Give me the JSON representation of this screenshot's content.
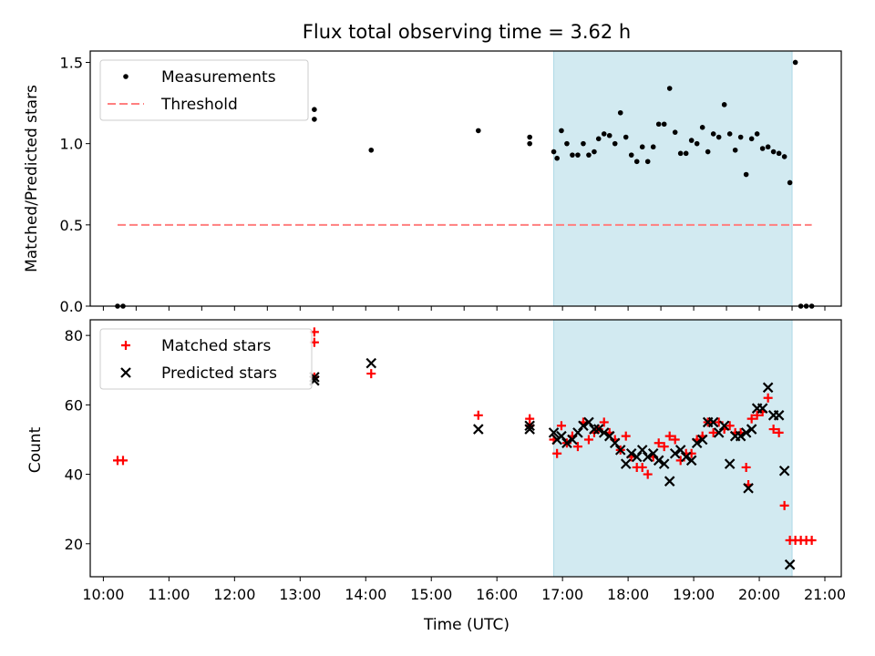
{
  "chart_data": [
    {
      "type": "scatter",
      "title": "Flux total observing time = 3.62 h",
      "xlabel": "",
      "ylabel": "Matched/Predicted stars",
      "xlim": [
        "09:48",
        "21:15"
      ],
      "ylim": [
        0,
        1.57
      ],
      "yticks": [
        0.0,
        0.5,
        1.0,
        1.5
      ],
      "ytick_labels": [
        "0.0",
        "0.5",
        "1.0",
        "1.5"
      ],
      "legend_position": "top-left",
      "shaded_span": {
        "from": "16:52",
        "to": "20:30",
        "color": "#add8e6"
      },
      "series": [
        {
          "name": "Measurements",
          "marker": "dot",
          "color": "#000000",
          "points": [
            [
              "10:13",
              0.0
            ],
            [
              "10:18",
              0.0
            ],
            [
              "13:13",
              1.21
            ],
            [
              "13:13",
              1.15
            ],
            [
              "14:05",
              0.96
            ],
            [
              "15:43",
              1.08
            ],
            [
              "16:30",
              1.04
            ],
            [
              "16:30",
              1.0
            ],
            [
              "16:52",
              0.95
            ],
            [
              "16:55",
              0.91
            ],
            [
              "16:59",
              1.08
            ],
            [
              "17:04",
              1.0
            ],
            [
              "17:09",
              0.93
            ],
            [
              "17:14",
              0.93
            ],
            [
              "17:19",
              1.0
            ],
            [
              "17:24",
              0.93
            ],
            [
              "17:29",
              0.95
            ],
            [
              "17:33",
              1.03
            ],
            [
              "17:38",
              1.06
            ],
            [
              "17:43",
              1.05
            ],
            [
              "17:48",
              1.0
            ],
            [
              "17:53",
              1.19
            ],
            [
              "17:58",
              1.04
            ],
            [
              "18:03",
              0.93
            ],
            [
              "18:08",
              0.89
            ],
            [
              "18:13",
              0.98
            ],
            [
              "18:18",
              0.89
            ],
            [
              "18:23",
              0.98
            ],
            [
              "18:28",
              1.12
            ],
            [
              "18:33",
              1.12
            ],
            [
              "18:38",
              1.34
            ],
            [
              "18:43",
              1.07
            ],
            [
              "18:48",
              0.94
            ],
            [
              "18:53",
              0.94
            ],
            [
              "18:58",
              1.02
            ],
            [
              "19:03",
              1.0
            ],
            [
              "19:08",
              1.1
            ],
            [
              "19:13",
              0.95
            ],
            [
              "19:18",
              1.06
            ],
            [
              "19:23",
              1.04
            ],
            [
              "19:28",
              1.24
            ],
            [
              "19:33",
              1.06
            ],
            [
              "19:38",
              0.96
            ],
            [
              "19:43",
              1.04
            ],
            [
              "19:48",
              0.81
            ],
            [
              "19:53",
              1.03
            ],
            [
              "19:58",
              1.06
            ],
            [
              "20:03",
              0.97
            ],
            [
              "20:08",
              0.98
            ],
            [
              "20:13",
              0.95
            ],
            [
              "20:18",
              0.94
            ],
            [
              "20:23",
              0.92
            ],
            [
              "20:28",
              0.76
            ],
            [
              "20:33",
              1.5
            ],
            [
              "20:38",
              0.0
            ],
            [
              "20:43",
              0.0
            ],
            [
              "20:48",
              0.0
            ]
          ]
        },
        {
          "name": "Threshold",
          "marker": "dashed-line",
          "color": "#ff7f7f",
          "points": [
            [
              "10:13",
              0.5
            ],
            [
              "20:48",
              0.5
            ]
          ]
        }
      ]
    },
    {
      "type": "scatter",
      "title": "",
      "xlabel": "Time (UTC)",
      "ylabel": "Count",
      "xlim": [
        "09:48",
        "21:15"
      ],
      "ylim": [
        10.5,
        84.5
      ],
      "yticks": [
        20,
        40,
        60,
        80
      ],
      "ytick_labels": [
        "20",
        "40",
        "60",
        "80"
      ],
      "xticks": [
        "10:00",
        "11:00",
        "12:00",
        "13:00",
        "14:00",
        "15:00",
        "16:00",
        "17:00",
        "18:00",
        "19:00",
        "20:00",
        "21:00"
      ],
      "legend_position": "top-left",
      "shaded_span": {
        "from": "16:52",
        "to": "20:30",
        "color": "#add8e6"
      },
      "series": [
        {
          "name": "Matched stars",
          "marker": "plus",
          "color": "#ff0000",
          "points": [
            [
              "10:13",
              44
            ],
            [
              "10:18",
              44
            ],
            [
              "13:13",
              81
            ],
            [
              "13:13",
              78
            ],
            [
              "13:13",
              68
            ],
            [
              "14:05",
              69
            ],
            [
              "15:43",
              57
            ],
            [
              "16:30",
              56
            ],
            [
              "16:30",
              54
            ],
            [
              "16:52",
              50
            ],
            [
              "16:55",
              46
            ],
            [
              "16:59",
              54
            ],
            [
              "17:04",
              49
            ],
            [
              "17:09",
              51
            ],
            [
              "17:14",
              48
            ],
            [
              "17:19",
              55
            ],
            [
              "17:24",
              50
            ],
            [
              "17:29",
              52
            ],
            [
              "17:33",
              53
            ],
            [
              "17:38",
              55
            ],
            [
              "17:43",
              52
            ],
            [
              "17:48",
              50
            ],
            [
              "17:53",
              47
            ],
            [
              "17:58",
              51
            ],
            [
              "18:03",
              45
            ],
            [
              "18:08",
              42
            ],
            [
              "18:13",
              42
            ],
            [
              "18:18",
              40
            ],
            [
              "18:23",
              45
            ],
            [
              "18:28",
              49
            ],
            [
              "18:33",
              48
            ],
            [
              "18:38",
              51
            ],
            [
              "18:43",
              50
            ],
            [
              "18:48",
              44
            ],
            [
              "18:53",
              46
            ],
            [
              "18:58",
              46
            ],
            [
              "19:03",
              50
            ],
            [
              "19:08",
              51
            ],
            [
              "19:13",
              55
            ],
            [
              "19:18",
              52
            ],
            [
              "19:23",
              55
            ],
            [
              "19:28",
              53
            ],
            [
              "19:33",
              54
            ],
            [
              "19:38",
              52
            ],
            [
              "19:43",
              52
            ],
            [
              "19:48",
              42
            ],
            [
              "19:50",
              37
            ],
            [
              "19:53",
              56
            ],
            [
              "19:58",
              57
            ],
            [
              "20:03",
              58
            ],
            [
              "20:08",
              62
            ],
            [
              "20:13",
              53
            ],
            [
              "20:18",
              52
            ],
            [
              "20:23",
              31
            ],
            [
              "20:28",
              21
            ],
            [
              "20:33",
              21
            ],
            [
              "20:38",
              21
            ],
            [
              "20:43",
              21
            ],
            [
              "20:48",
              21
            ]
          ]
        },
        {
          "name": "Predicted stars",
          "marker": "x",
          "color": "#000000",
          "points": [
            [
              "13:13",
              68
            ],
            [
              "13:13",
              67
            ],
            [
              "14:05",
              72
            ],
            [
              "15:43",
              53
            ],
            [
              "16:30",
              54
            ],
            [
              "16:30",
              53
            ],
            [
              "16:52",
              52
            ],
            [
              "16:55",
              50
            ],
            [
              "16:59",
              51
            ],
            [
              "17:04",
              49
            ],
            [
              "17:09",
              50
            ],
            [
              "17:14",
              52
            ],
            [
              "17:19",
              54
            ],
            [
              "17:24",
              55
            ],
            [
              "17:29",
              53
            ],
            [
              "17:33",
              53
            ],
            [
              "17:38",
              52
            ],
            [
              "17:43",
              51
            ],
            [
              "17:48",
              49
            ],
            [
              "17:53",
              47
            ],
            [
              "17:58",
              43
            ],
            [
              "18:03",
              46
            ],
            [
              "18:08",
              45
            ],
            [
              "18:13",
              47
            ],
            [
              "18:18",
              45
            ],
            [
              "18:23",
              46
            ],
            [
              "18:28",
              44
            ],
            [
              "18:33",
              43
            ],
            [
              "18:38",
              38
            ],
            [
              "18:43",
              46
            ],
            [
              "18:48",
              47
            ],
            [
              "18:53",
              45
            ],
            [
              "18:58",
              44
            ],
            [
              "19:03",
              49
            ],
            [
              "19:08",
              50
            ],
            [
              "19:13",
              55
            ],
            [
              "19:18",
              55
            ],
            [
              "19:23",
              52
            ],
            [
              "19:28",
              54
            ],
            [
              "19:33",
              43
            ],
            [
              "19:38",
              51
            ],
            [
              "19:43",
              51
            ],
            [
              "19:48",
              52
            ],
            [
              "19:50",
              36
            ],
            [
              "19:53",
              53
            ],
            [
              "19:58",
              59
            ],
            [
              "20:03",
              59
            ],
            [
              "20:08",
              65
            ],
            [
              "20:13",
              57
            ],
            [
              "20:18",
              57
            ],
            [
              "20:23",
              41
            ],
            [
              "20:28",
              14
            ]
          ]
        }
      ]
    }
  ]
}
